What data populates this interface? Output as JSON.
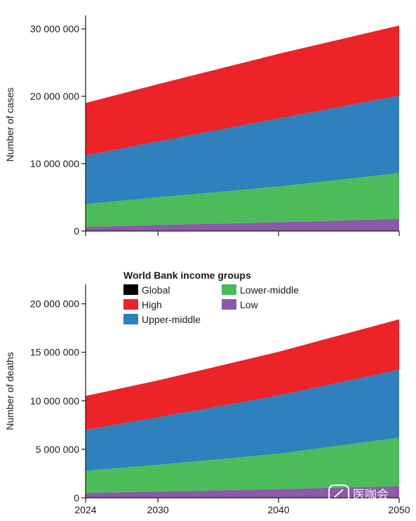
{
  "chart_data": [
    {
      "type": "area",
      "stacked": true,
      "title": "",
      "xlabel": "",
      "ylabel": "Number of cases",
      "x": [
        2024,
        2030,
        2040,
        2050
      ],
      "xlim": [
        2024,
        2050
      ],
      "ylim": [
        0,
        32000000
      ],
      "yticks": [
        0,
        10000000,
        20000000,
        30000000
      ],
      "ytick_labels": [
        "0",
        "10 000 000",
        "20 000 000",
        "30 000 000"
      ],
      "xticks": [
        2024,
        2030,
        2040,
        2050
      ],
      "xtick_labels": [
        "",
        "",
        "",
        ""
      ],
      "grid": false,
      "series": [
        {
          "name": "Low",
          "color": "#8e59a8",
          "values": [
            600000,
            900000,
            1300000,
            1800000
          ]
        },
        {
          "name": "Lower-middle",
          "color": "#4cbb5a",
          "values": [
            3400000,
            4100000,
            5300000,
            6800000
          ]
        },
        {
          "name": "Upper-middle",
          "color": "#2f80bd",
          "values": [
            7200000,
            8300000,
            10100000,
            11500000
          ]
        },
        {
          "name": "High",
          "color": "#ec2327",
          "values": [
            7800000,
            8500000,
            9600000,
            10400000
          ]
        }
      ]
    },
    {
      "type": "area",
      "stacked": true,
      "title": "",
      "xlabel": "",
      "ylabel": "Number of deaths",
      "x": [
        2024,
        2030,
        2040,
        2050
      ],
      "xlim": [
        2024,
        2050
      ],
      "ylim": [
        0,
        22000000
      ],
      "yticks": [
        0,
        5000000,
        10000000,
        15000000,
        20000000
      ],
      "ytick_labels": [
        "0",
        "5 000 000",
        "10 000 000",
        "15 000 000",
        "20 000 000"
      ],
      "xticks": [
        2024,
        2030,
        2040,
        2050
      ],
      "xtick_labels": [
        "2024",
        "2030",
        "2040",
        "2050"
      ],
      "grid": false,
      "series": [
        {
          "name": "Low",
          "color": "#8e59a8",
          "values": [
            500000,
            650000,
            900000,
            1200000
          ]
        },
        {
          "name": "Lower-middle",
          "color": "#4cbb5a",
          "values": [
            2300000,
            2750000,
            3650000,
            5000000
          ]
        },
        {
          "name": "Upper-middle",
          "color": "#2f80bd",
          "values": [
            4200000,
            4900000,
            6000000,
            7000000
          ]
        },
        {
          "name": "High",
          "color": "#ec2327",
          "values": [
            3500000,
            3800000,
            4500000,
            5200000
          ]
        }
      ]
    }
  ],
  "legend": {
    "title": "World Bank income groups",
    "placement": "top-left of lower panel",
    "items": [
      {
        "label": "Global",
        "color": "#000000"
      },
      {
        "label": "High",
        "color": "#ec2327"
      },
      {
        "label": "Upper-middle",
        "color": "#2f80bd"
      },
      {
        "label": "Lower-middle",
        "color": "#4cbb5a"
      },
      {
        "label": "Low",
        "color": "#8e59a8"
      }
    ]
  },
  "watermark": {
    "text": "医咖会",
    "icon": "chat-bubble-icon"
  }
}
